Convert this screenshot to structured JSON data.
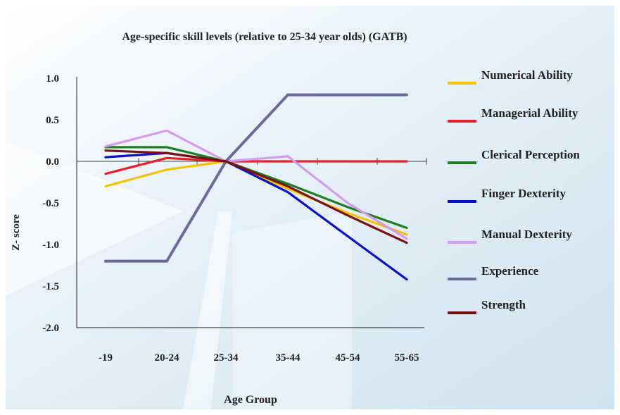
{
  "chart_data": {
    "type": "line",
    "title": "Age-specific skill levels (relative to 25-34 year olds) (GATB)",
    "xlabel": "Age Group",
    "ylabel": "Z- score",
    "categories": [
      "-19",
      "20-24",
      "25-34",
      "35-44",
      "45-54",
      "55-65"
    ],
    "ylim": [
      -2.0,
      1.0
    ],
    "yticks": [
      "1.0",
      "0.5",
      "0.0",
      "-0.5",
      "-1.0",
      "-1.5",
      "-2.0"
    ],
    "grid": false,
    "legend_position": "right",
    "series": [
      {
        "name": "Numerical Ability",
        "color": "#f2c200",
        "values": [
          -0.3,
          -0.1,
          0.0,
          -0.33,
          -0.62,
          -0.88
        ]
      },
      {
        "name": "Managerial Ability",
        "color": "#e8202a",
        "values": [
          -0.15,
          0.04,
          0.0,
          0.0,
          0.0,
          0.0
        ]
      },
      {
        "name": "Clerical Perception",
        "color": "#1e7d1e",
        "values": [
          0.17,
          0.17,
          0.0,
          -0.27,
          -0.55,
          -0.8
        ]
      },
      {
        "name": "Finger Dexterity",
        "color": "#0a10c8",
        "values": [
          0.05,
          0.1,
          0.0,
          -0.37,
          -0.9,
          -1.42
        ]
      },
      {
        "name": "Manual Dexterity",
        "color": "#d69aec",
        "values": [
          0.18,
          0.37,
          0.0,
          0.06,
          -0.5,
          -0.93
        ]
      },
      {
        "name": "Experience",
        "color": "#6b6b9a",
        "values": [
          -1.2,
          -1.2,
          0.0,
          0.8,
          0.8,
          0.8
        ]
      },
      {
        "name": "Strength",
        "color": "#7a1010",
        "values": [
          0.13,
          0.1,
          0.0,
          -0.3,
          -0.65,
          -0.98
        ]
      }
    ]
  }
}
